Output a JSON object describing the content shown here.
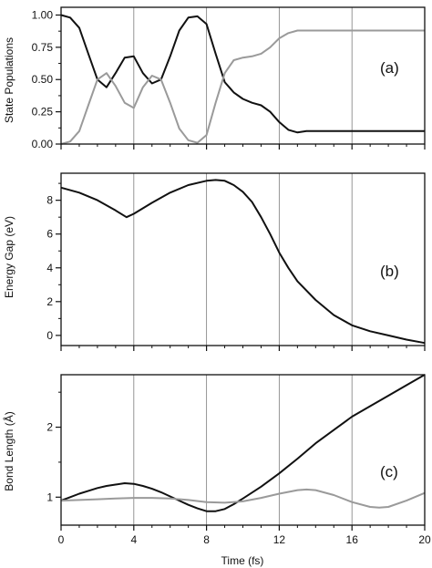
{
  "colors": {
    "series_dark": "#111111",
    "series_light": "#9a9a9a",
    "vline": "#8a8a8a",
    "axis": "#111111"
  },
  "x_axis": {
    "label": "Time (fs)",
    "range": [
      0,
      20
    ],
    "ticks": [
      0,
      4,
      8,
      12,
      16,
      20
    ],
    "tick_labels": [
      "0",
      "4",
      "8",
      "12",
      "16",
      "20"
    ]
  },
  "chart_data": [
    {
      "type": "line",
      "panel_label": "(a)",
      "ylabel": "State Populations",
      "ylim": [
        0,
        1.06
      ],
      "yticks": [
        0,
        0.25,
        0.5,
        0.75,
        1.0
      ],
      "ytick_labels": [
        "0.00",
        "0.25",
        "0.50",
        "0.75",
        "1.00"
      ],
      "vlines": [
        4,
        8,
        12,
        16
      ],
      "series": [
        {
          "color_key": "series_dark",
          "x": [
            0,
            0.5,
            1,
            1.5,
            2,
            2.5,
            3,
            3.5,
            4,
            4.5,
            5,
            5.5,
            6,
            6.5,
            7,
            7.5,
            8,
            8.5,
            9,
            9.5,
            10,
            10.5,
            11,
            11.5,
            12,
            12.5,
            13,
            13.5,
            14,
            15,
            16,
            17,
            18,
            19,
            20
          ],
          "y": [
            1.0,
            0.98,
            0.9,
            0.7,
            0.5,
            0.44,
            0.55,
            0.67,
            0.68,
            0.55,
            0.47,
            0.5,
            0.68,
            0.88,
            0.98,
            0.99,
            0.93,
            0.7,
            0.48,
            0.4,
            0.35,
            0.32,
            0.3,
            0.25,
            0.17,
            0.11,
            0.09,
            0.1,
            0.1,
            0.1,
            0.1,
            0.1,
            0.1,
            0.1,
            0.1
          ]
        },
        {
          "color_key": "series_light",
          "x": [
            0,
            0.5,
            1,
            1.5,
            2,
            2.5,
            3,
            3.5,
            4,
            4.5,
            5,
            5.5,
            6,
            6.5,
            7,
            7.5,
            8,
            8.5,
            9,
            9.5,
            10,
            10.5,
            11,
            11.5,
            12,
            12.5,
            13,
            13.5,
            14,
            15,
            16,
            17,
            18,
            19,
            20
          ],
          "y": [
            0.0,
            0.02,
            0.1,
            0.3,
            0.5,
            0.55,
            0.45,
            0.32,
            0.28,
            0.44,
            0.53,
            0.5,
            0.32,
            0.12,
            0.03,
            0.01,
            0.07,
            0.32,
            0.55,
            0.65,
            0.67,
            0.68,
            0.7,
            0.75,
            0.82,
            0.86,
            0.88,
            0.88,
            0.88,
            0.88,
            0.88,
            0.88,
            0.88,
            0.88,
            0.88
          ]
        }
      ]
    },
    {
      "type": "line",
      "panel_label": "(b)",
      "ylabel": "Energy Gap (eV)",
      "ylim": [
        -0.6,
        9.6
      ],
      "yticks": [
        0,
        2,
        4,
        6,
        8
      ],
      "ytick_labels": [
        "0",
        "2",
        "4",
        "6",
        "8"
      ],
      "vlines": [
        4,
        8,
        12,
        16
      ],
      "series": [
        {
          "color_key": "series_dark",
          "x": [
            0,
            1,
            2,
            3,
            3.6,
            4,
            5,
            6,
            7,
            8,
            8.5,
            9,
            9.5,
            10,
            10.5,
            11,
            11.5,
            12,
            12.5,
            13,
            14,
            15,
            16,
            17,
            18,
            19,
            20
          ],
          "y": [
            8.75,
            8.45,
            8.0,
            7.4,
            7.0,
            7.2,
            7.85,
            8.45,
            8.9,
            9.15,
            9.2,
            9.15,
            8.9,
            8.5,
            7.9,
            7.0,
            6.0,
            4.9,
            4.0,
            3.2,
            2.1,
            1.2,
            0.6,
            0.25,
            0.0,
            -0.25,
            -0.45
          ]
        }
      ]
    },
    {
      "type": "line",
      "panel_label": "(c)",
      "ylabel": "Bond Length (Å)",
      "ylim": [
        0.6,
        2.75
      ],
      "yticks": [
        1,
        2
      ],
      "ytick_labels": [
        "1",
        "2"
      ],
      "vlines": [
        4,
        8,
        12,
        16
      ],
      "series": [
        {
          "color_key": "series_dark",
          "x": [
            0,
            0.5,
            1,
            1.5,
            2,
            2.5,
            3,
            3.5,
            4,
            4.5,
            5,
            5.5,
            6,
            6.5,
            7,
            7.5,
            8,
            8.5,
            9,
            9.5,
            10,
            11,
            12,
            13,
            14,
            15,
            16,
            17,
            18,
            19,
            20
          ],
          "y": [
            0.95,
            1.0,
            1.05,
            1.09,
            1.13,
            1.16,
            1.18,
            1.2,
            1.19,
            1.16,
            1.12,
            1.07,
            1.01,
            0.95,
            0.89,
            0.84,
            0.8,
            0.8,
            0.83,
            0.9,
            0.98,
            1.15,
            1.34,
            1.55,
            1.77,
            1.96,
            2.15,
            2.3,
            2.45,
            2.6,
            2.75
          ]
        },
        {
          "color_key": "series_light",
          "x": [
            0,
            1,
            2,
            3,
            4,
            5,
            6,
            7,
            8,
            9,
            10,
            11,
            12,
            13,
            13.5,
            14,
            15,
            16,
            17,
            17.5,
            18,
            19,
            20
          ],
          "y": [
            0.95,
            0.96,
            0.97,
            0.98,
            0.99,
            0.99,
            0.98,
            0.96,
            0.93,
            0.92,
            0.94,
            0.99,
            1.05,
            1.1,
            1.11,
            1.1,
            1.03,
            0.93,
            0.86,
            0.85,
            0.86,
            0.95,
            1.06
          ]
        }
      ]
    }
  ]
}
